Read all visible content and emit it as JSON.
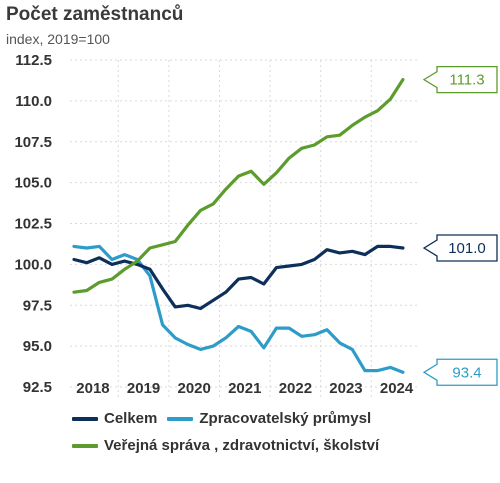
{
  "header": {
    "title": "Počet zaměstnanců",
    "subtitle": "index, 2019=100"
  },
  "chart_data": {
    "type": "line",
    "title": "Počet zaměstnanců",
    "subtitle": "index, 2019=100",
    "ylim": [
      92.5,
      112.5
    ],
    "yticks": [
      "112.5",
      "110.0",
      "107.5",
      "105.0",
      "102.5",
      "100.0",
      "97.5",
      "95.0",
      "92.5"
    ],
    "xticks": [
      "2018",
      "2019",
      "2020",
      "2021",
      "2022",
      "2023",
      "2024"
    ],
    "x": [
      "2018Q1",
      "2018Q2",
      "2018Q3",
      "2018Q4",
      "2019Q1",
      "2019Q2",
      "2019Q3",
      "2019Q4",
      "2020Q1",
      "2020Q2",
      "2020Q3",
      "2020Q4",
      "2021Q1",
      "2021Q2",
      "2021Q3",
      "2021Q4",
      "2022Q1",
      "2022Q2",
      "2022Q3",
      "2022Q4",
      "2023Q1",
      "2023Q2",
      "2023Q3",
      "2023Q4",
      "2024Q1",
      "2024Q2",
      "2024Q3"
    ],
    "grid": true,
    "legend_position": "bottom",
    "series": [
      {
        "name": "Celkem",
        "color": "#0d2f5a",
        "end_label": "101.0",
        "values": [
          100.3,
          100.1,
          100.4,
          100.0,
          100.2,
          100.0,
          99.7,
          98.5,
          97.4,
          97.5,
          97.3,
          97.8,
          98.3,
          99.1,
          99.2,
          98.8,
          99.8,
          99.9,
          100.0,
          100.3,
          100.9,
          100.7,
          100.8,
          100.6,
          101.1,
          101.1,
          101.0
        ]
      },
      {
        "name": "Zpracovatelský průmysl",
        "color": "#2e9cc8",
        "end_label": "93.4",
        "values": [
          101.1,
          101.0,
          101.1,
          100.3,
          100.6,
          100.3,
          99.3,
          96.3,
          95.5,
          95.1,
          94.8,
          95.0,
          95.5,
          96.2,
          95.9,
          94.9,
          96.1,
          96.1,
          95.6,
          95.7,
          96.0,
          95.2,
          94.8,
          93.5,
          93.5,
          93.7,
          93.4
        ]
      },
      {
        "name": "Veřejná správa , zdravotnictví, školství",
        "color": "#5c9c2c",
        "end_label": "111.3",
        "values": [
          98.3,
          98.4,
          98.9,
          99.1,
          99.7,
          100.2,
          101.0,
          101.2,
          101.4,
          102.4,
          103.3,
          103.7,
          104.6,
          105.4,
          105.7,
          104.9,
          105.6,
          106.5,
          107.1,
          107.3,
          107.8,
          107.9,
          108.5,
          109.0,
          109.4,
          110.1,
          111.3
        ]
      }
    ]
  }
}
